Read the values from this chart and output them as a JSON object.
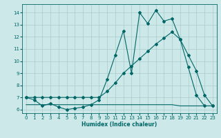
{
  "title": "",
  "xlabel": "Humidex (Indice chaleur)",
  "background_color": "#cce8e8",
  "grid_color": "#aacccc",
  "line_color": "#006666",
  "xlim": [
    -0.5,
    23.5
  ],
  "ylim": [
    5.7,
    14.7
  ],
  "yticks": [
    6,
    7,
    8,
    9,
    10,
    11,
    12,
    13,
    14
  ],
  "xticks": [
    0,
    1,
    2,
    3,
    4,
    5,
    6,
    7,
    8,
    9,
    10,
    11,
    12,
    13,
    14,
    15,
    16,
    17,
    18,
    19,
    20,
    21,
    22,
    23
  ],
  "series1_x": [
    0,
    1,
    2,
    3,
    4,
    5,
    6,
    7,
    8,
    9,
    10,
    11,
    12,
    13,
    14,
    15,
    16,
    17,
    18,
    19,
    20,
    21,
    22,
    23
  ],
  "series1_y": [
    7.0,
    6.8,
    6.3,
    6.5,
    6.2,
    6.0,
    6.1,
    6.2,
    6.4,
    6.8,
    8.5,
    10.5,
    12.5,
    9.0,
    14.0,
    13.1,
    14.2,
    13.3,
    13.5,
    11.8,
    9.5,
    7.2,
    6.3,
    6.3
  ],
  "series2_x": [
    0,
    1,
    2,
    3,
    4,
    5,
    6,
    7,
    8,
    9,
    10,
    11,
    12,
    13,
    14,
    15,
    16,
    17,
    18,
    19,
    20,
    21,
    22,
    23
  ],
  "series2_y": [
    7.0,
    7.0,
    7.0,
    7.0,
    7.0,
    7.0,
    7.0,
    7.0,
    7.0,
    7.0,
    7.5,
    8.2,
    9.0,
    9.6,
    10.2,
    10.8,
    11.4,
    11.9,
    12.4,
    11.8,
    10.5,
    9.2,
    7.2,
    6.3
  ],
  "series3_x": [
    0,
    1,
    2,
    3,
    4,
    5,
    6,
    7,
    8,
    9,
    10,
    11,
    12,
    13,
    14,
    15,
    16,
    17,
    18,
    19,
    20,
    21,
    22,
    23
  ],
  "series3_y": [
    6.4,
    6.4,
    6.4,
    6.4,
    6.4,
    6.4,
    6.4,
    6.4,
    6.4,
    6.4,
    6.4,
    6.4,
    6.4,
    6.4,
    6.4,
    6.4,
    6.4,
    6.4,
    6.4,
    6.3,
    6.3,
    6.3,
    6.3,
    6.3
  ]
}
